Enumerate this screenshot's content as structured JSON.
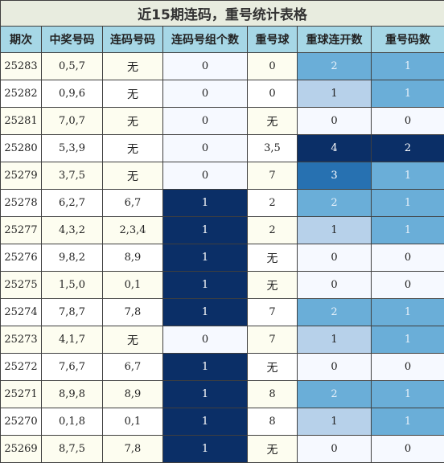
{
  "title": "近15期连码，重号统计表格",
  "headers": [
    "期次",
    "中奖号码",
    "连码号码",
    "连码号组个数",
    "重号球",
    "重球连开数",
    "重号码数"
  ],
  "rows": [
    {
      "period": "25283",
      "winning": "0,5,7",
      "lian": "无",
      "lian_count": "0",
      "repeat_ball": "0",
      "repeat_streak": "2",
      "repeat_count": "1"
    },
    {
      "period": "25282",
      "winning": "0,9,6",
      "lian": "无",
      "lian_count": "0",
      "repeat_ball": "0",
      "repeat_streak": "1",
      "repeat_count": "1"
    },
    {
      "period": "25281",
      "winning": "7,0,7",
      "lian": "无",
      "lian_count": "0",
      "repeat_ball": "无",
      "repeat_streak": "0",
      "repeat_count": "0"
    },
    {
      "period": "25280",
      "winning": "5,3,9",
      "lian": "无",
      "lian_count": "0",
      "repeat_ball": "3,5",
      "repeat_streak": "4",
      "repeat_count": "2"
    },
    {
      "period": "25279",
      "winning": "3,7,5",
      "lian": "无",
      "lian_count": "0",
      "repeat_ball": "7",
      "repeat_streak": "3",
      "repeat_count": "1"
    },
    {
      "period": "25278",
      "winning": "6,2,7",
      "lian": "6,7",
      "lian_count": "1",
      "repeat_ball": "2",
      "repeat_streak": "2",
      "repeat_count": "1"
    },
    {
      "period": "25277",
      "winning": "4,3,2",
      "lian": "2,3,4",
      "lian_count": "1",
      "repeat_ball": "2",
      "repeat_streak": "1",
      "repeat_count": "1"
    },
    {
      "period": "25276",
      "winning": "9,8,2",
      "lian": "8,9",
      "lian_count": "1",
      "repeat_ball": "无",
      "repeat_streak": "0",
      "repeat_count": "0"
    },
    {
      "period": "25275",
      "winning": "1,5,0",
      "lian": "0,1",
      "lian_count": "1",
      "repeat_ball": "无",
      "repeat_streak": "0",
      "repeat_count": "0"
    },
    {
      "period": "25274",
      "winning": "7,8,7",
      "lian": "7,8",
      "lian_count": "1",
      "repeat_ball": "7",
      "repeat_streak": "2",
      "repeat_count": "1"
    },
    {
      "period": "25273",
      "winning": "4,1,7",
      "lian": "无",
      "lian_count": "0",
      "repeat_ball": "7",
      "repeat_streak": "1",
      "repeat_count": "1"
    },
    {
      "period": "25272",
      "winning": "7,6,7",
      "lian": "6,7",
      "lian_count": "1",
      "repeat_ball": "无",
      "repeat_streak": "0",
      "repeat_count": "0"
    },
    {
      "period": "25271",
      "winning": "8,9,8",
      "lian": "8,9",
      "lian_count": "1",
      "repeat_ball": "8",
      "repeat_streak": "2",
      "repeat_count": "1"
    },
    {
      "period": "25270",
      "winning": "0,1,8",
      "lian": "0,1",
      "lian_count": "1",
      "repeat_ball": "8",
      "repeat_streak": "1",
      "repeat_count": "1"
    },
    {
      "period": "25269",
      "winning": "8,7,5",
      "lian": "7,8",
      "lian_count": "1",
      "repeat_ball": "无",
      "repeat_streak": "0",
      "repeat_count": "0"
    }
  ],
  "colors": {
    "title_bg": "#e8ecdf",
    "header_bg": "#a6d7e6",
    "odd_row_bg": "#fdfdf0",
    "heat_levels": [
      "#f6f9ff",
      "#b7d1ea",
      "#6aaed8",
      "#2771b1",
      "#0b2f67"
    ]
  }
}
